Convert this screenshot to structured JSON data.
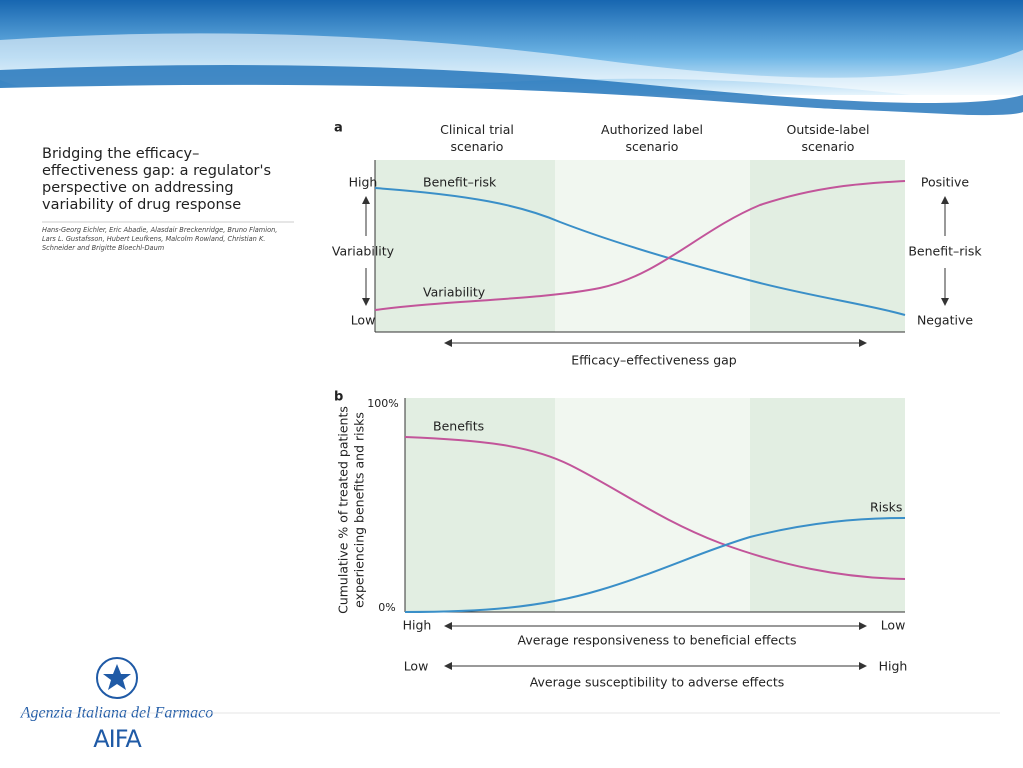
{
  "slide": {
    "title": "Bridging the efficacy–effectiveness gap: a regulator's perspective on addressing variability of drug response",
    "authors": "Hans-Georg Eichler, Eric Abadie, Alasdair Breckenridge, Bruno Flamion, Lars L. Gustafsson, Hubert Leufkens, Malcolm Rowland, Christian K. Schneider and Brigitte Bloechl-Daum",
    "logo": {
      "name": "Agenzia Italiana del Farmaco",
      "acronym": "AIFA"
    }
  },
  "panel_a": {
    "label": "a",
    "columns": [
      "Clinical trial scenario",
      "Authorized label scenario",
      "Outside-label scenario"
    ],
    "left_axis": {
      "high": "High",
      "title": "Variability",
      "low": "Low"
    },
    "right_axis": {
      "high": "Positive",
      "title": "Benefit–risk",
      "low": "Negative"
    },
    "curves": [
      "Benefit–risk",
      "Variability"
    ],
    "gap_label": "Efficacy–effectiveness gap"
  },
  "panel_b": {
    "label": "b",
    "y_title": [
      "Cumulative % of treated patients",
      "experiencing benefits and risks"
    ],
    "y_top": "100%",
    "y_bottom": "0%",
    "curves": [
      "Benefits",
      "Risks"
    ],
    "axis_1": {
      "left": "High",
      "right": "Low",
      "title": "Average responsiveness to beneficial effects"
    },
    "axis_2": {
      "left": "Low",
      "right": "High",
      "title": "Average susceptibility to adverse effects"
    }
  }
}
